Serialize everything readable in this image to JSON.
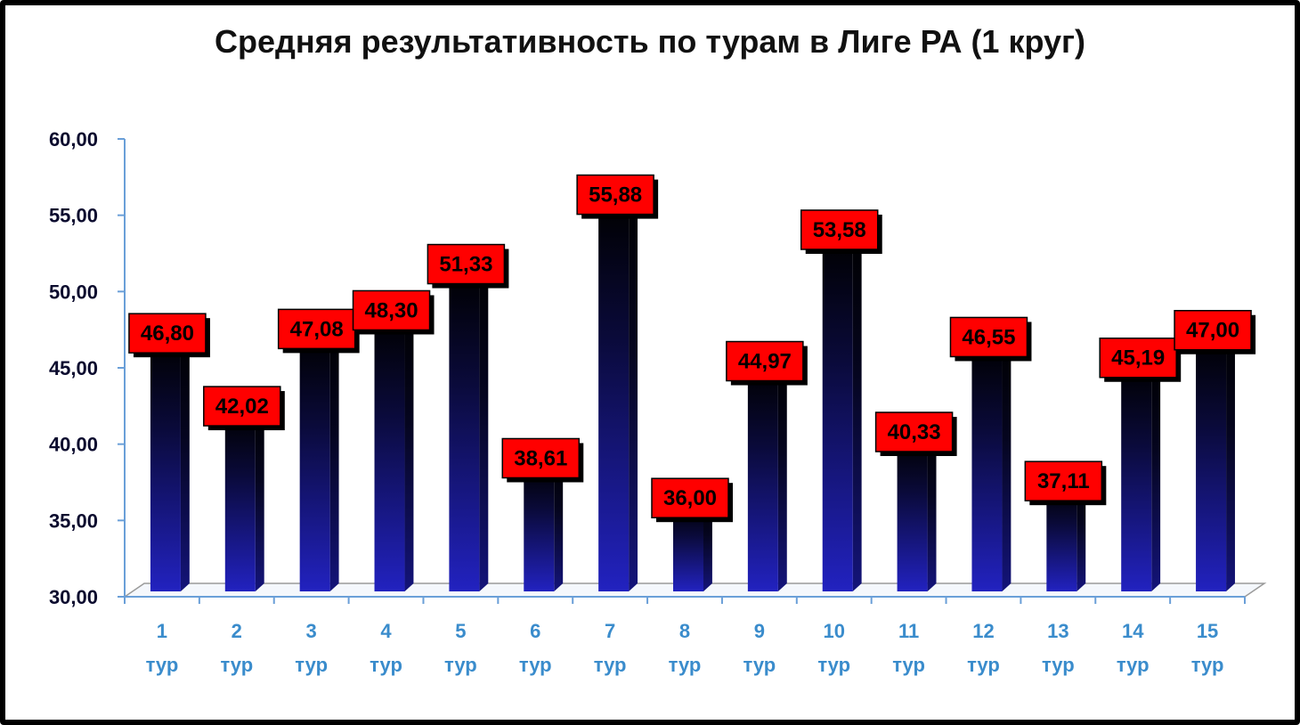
{
  "chart_data": {
    "type": "bar",
    "title": "Средняя результативность по турам в Лиге РА (1 круг)",
    "categories": [
      "1 тур",
      "2 тур",
      "3 тур",
      "4 тур",
      "5 тур",
      "6 тур",
      "7 тур",
      "8 тур",
      "9 тур",
      "10 тур",
      "11 тур",
      "12 тур",
      "13 тур",
      "14 тур",
      "15 тур"
    ],
    "category_lines": [
      [
        "1",
        "тур"
      ],
      [
        "2",
        "тур"
      ],
      [
        "3",
        "тур"
      ],
      [
        "4",
        "тур"
      ],
      [
        "5",
        "тур"
      ],
      [
        "6",
        "тур"
      ],
      [
        "7",
        "тур"
      ],
      [
        "8",
        "тур"
      ],
      [
        "9",
        "тур"
      ],
      [
        "10",
        "тур"
      ],
      [
        "11",
        "тур"
      ],
      [
        "12",
        "тур"
      ],
      [
        "13",
        "тур"
      ],
      [
        "14",
        "тур"
      ],
      [
        "15",
        "тур"
      ]
    ],
    "values": [
      46.8,
      42.02,
      47.08,
      48.3,
      51.33,
      38.61,
      55.88,
      36.0,
      44.97,
      53.58,
      40.33,
      46.55,
      37.11,
      45.19,
      47.0
    ],
    "value_labels": [
      "46,80",
      "42,02",
      "47,08",
      "48,30",
      "51,33",
      "38,61",
      "55,88",
      "36,00",
      "44,97",
      "53,58",
      "40,33",
      "46,55",
      "37,11",
      "45,19",
      "47,00"
    ],
    "ylim": [
      30,
      60
    ],
    "yticks": [
      "30,00",
      "35,00",
      "40,00",
      "45,00",
      "50,00",
      "55,00",
      "60,00"
    ],
    "ytick_values": [
      30,
      35,
      40,
      45,
      50,
      55,
      60
    ],
    "xlabel": "",
    "ylabel": "",
    "grid": false,
    "legend": "none",
    "style": "3d-column",
    "colors": {
      "bar_top": "#000000",
      "bar_bottom": "#1f1fb0",
      "label_fill": "#ff0000",
      "label_border": "#000000",
      "axis": "#6a9fd8",
      "xtick_text": "#3a8ccc",
      "ytick_text": "#0b0b2e"
    }
  }
}
